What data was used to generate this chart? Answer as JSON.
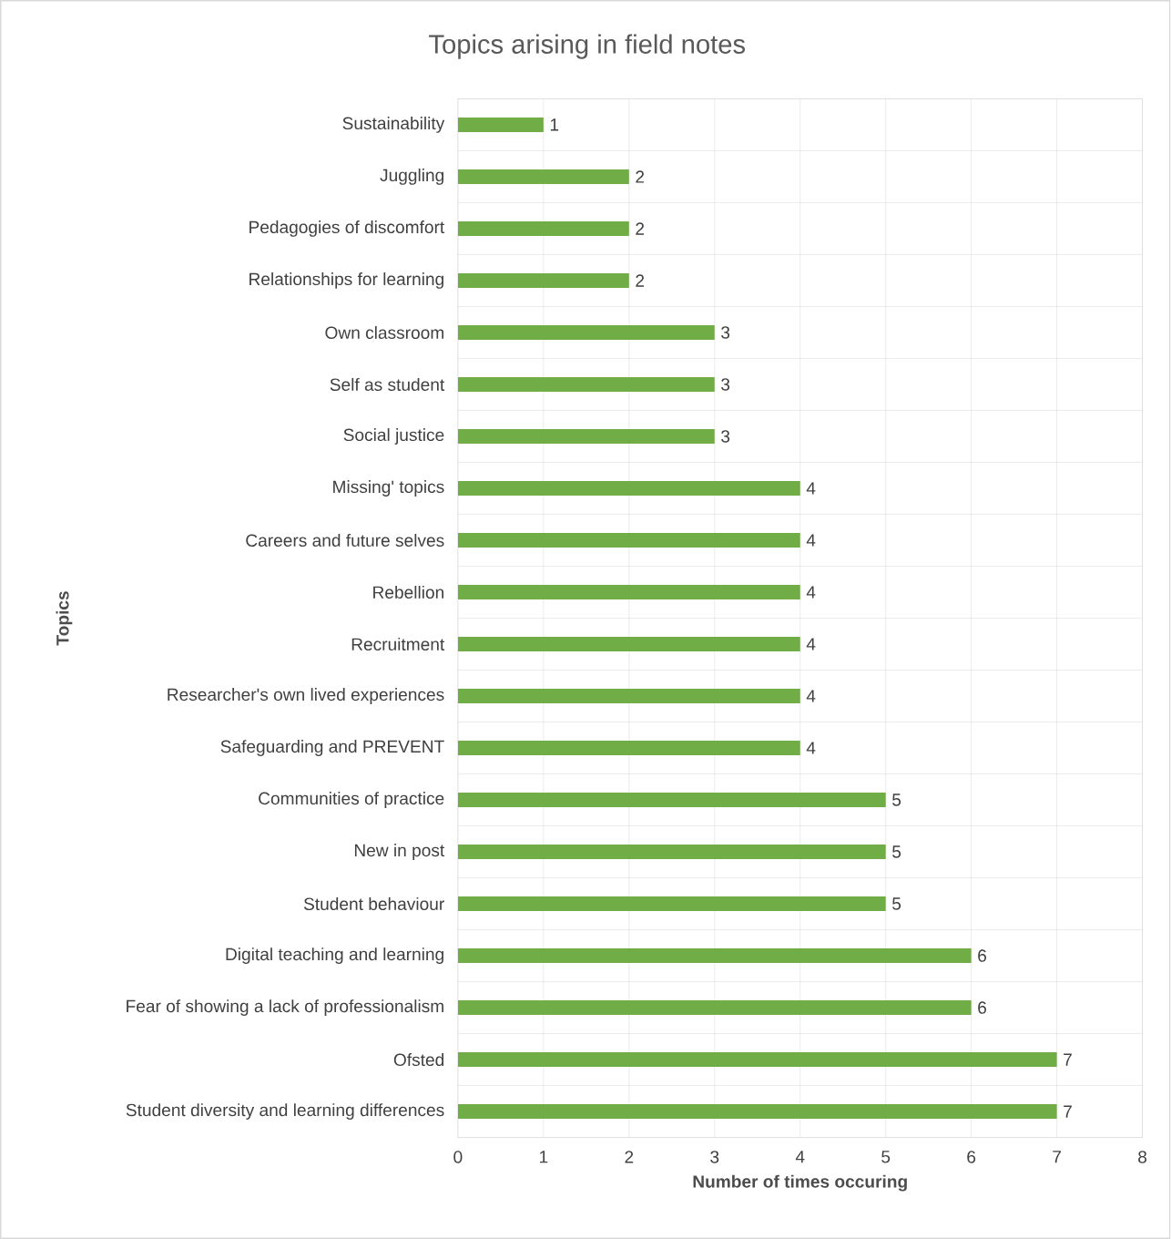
{
  "chart_data": {
    "type": "bar",
    "orientation": "horizontal",
    "title": "Topics arising in field notes",
    "xlabel": "Number of times occuring",
    "ylabel": "Topics",
    "categories": [
      "Sustainability",
      "Juggling",
      "Pedagogies of discomfort",
      "Relationships for learning",
      "Own classroom",
      "Self as student",
      "Social justice",
      "Missing' topics",
      "Careers and future selves",
      "Rebellion",
      "Recruitment",
      "Researcher's own lived experiences",
      "Safeguarding and PREVENT",
      "Communities of practice",
      "New in post",
      "Student behaviour",
      "Digital teaching and learning",
      "Fear of showing a lack of professionalism",
      "Ofsted",
      "Student diversity and learning differences"
    ],
    "values": [
      1,
      2,
      2,
      2,
      3,
      3,
      3,
      4,
      4,
      4,
      4,
      4,
      4,
      5,
      5,
      5,
      6,
      6,
      7,
      7
    ],
    "color": "#70ad47",
    "xlim": [
      0,
      8
    ],
    "xticks": [
      0,
      1,
      2,
      3,
      4,
      5,
      6,
      7,
      8
    ],
    "grid": true,
    "data_labels": true
  }
}
